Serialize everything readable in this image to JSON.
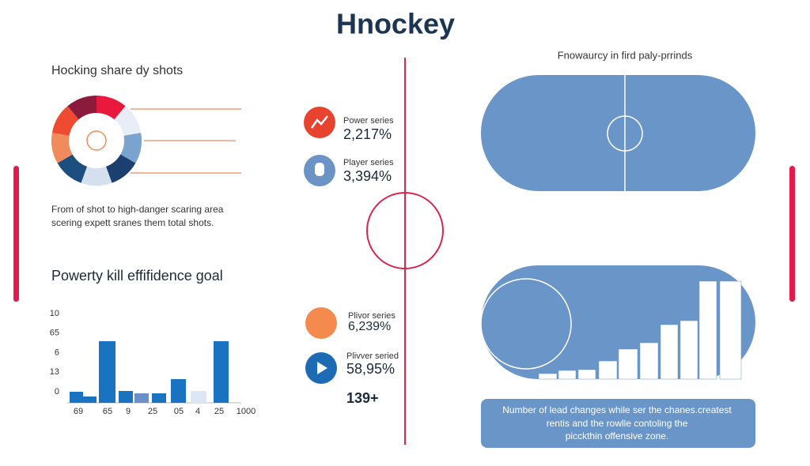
{
  "title": "Hnockey",
  "left": {
    "heading": "Hocking share dy shots",
    "caption": [
      "From of shot to high-danger scaring area",
      "scering expett sranes them total shots."
    ],
    "chart_title": "Powerty kill effifidence goal",
    "y_labels": [
      "10",
      "65",
      "6",
      "13",
      "0"
    ],
    "x_labels": [
      "69",
      "65",
      "9",
      "25",
      "05",
      "4",
      "25",
      "1000"
    ]
  },
  "stats": [
    {
      "label": "Power series",
      "value": "2,217%"
    },
    {
      "label": "Player series",
      "value": "3,394%"
    },
    {
      "label": "Plivor series",
      "value": "6,239%"
    },
    {
      "label": "Plivver seried",
      "value": "58,95%"
    }
  ],
  "extra": "139+",
  "right": {
    "heading": "Fnowaurcy in fird paly-prrinds",
    "note": [
      "Number of lead changes while ser the chanes.createst",
      "rentis and the rowlle contoling the",
      "picckthin offensive zone."
    ]
  }
}
